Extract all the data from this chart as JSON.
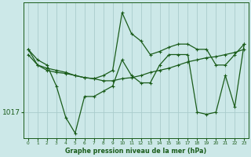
{
  "bg_color": "#cce8e8",
  "line_color": "#1a5c1a",
  "grid_color": "#aacccc",
  "xlabel_text": "Graphe pression niveau de la mer (hPa)",
  "x_ticks": [
    0,
    1,
    2,
    3,
    4,
    5,
    6,
    7,
    8,
    9,
    10,
    11,
    12,
    13,
    14,
    15,
    16,
    17,
    18,
    19,
    20,
    21,
    22,
    23
  ],
  "ylim": [
    1014.5,
    1027.5
  ],
  "xlim": [
    -0.5,
    23.5
  ],
  "ylabel_value": 1017,
  "series1_x": [
    0,
    1,
    2,
    3,
    4,
    5,
    6,
    7,
    8,
    9,
    10,
    11,
    12,
    13,
    14,
    15,
    16,
    17,
    18,
    19,
    20,
    21,
    22,
    23
  ],
  "series1_y": [
    1022.5,
    1021.5,
    1021.2,
    1021.0,
    1020.8,
    1020.5,
    1020.3,
    1020.2,
    1020.0,
    1020.0,
    1020.2,
    1020.3,
    1020.5,
    1020.8,
    1021.0,
    1021.2,
    1021.5,
    1021.8,
    1022.0,
    1022.2,
    1022.3,
    1022.5,
    1022.7,
    1023.0
  ],
  "series2_x": [
    0,
    1,
    2,
    3,
    4,
    5,
    6,
    7,
    8,
    9,
    10,
    11,
    12,
    13,
    14,
    15,
    16,
    17,
    18,
    19,
    20,
    21,
    22,
    23
  ],
  "series2_y": [
    1023.0,
    1021.5,
    1021.0,
    1020.8,
    1020.7,
    1020.5,
    1020.3,
    1020.2,
    1020.5,
    1021.0,
    1026.5,
    1024.5,
    1023.8,
    1022.5,
    1022.8,
    1023.2,
    1023.5,
    1023.5,
    1023.0,
    1023.0,
    1021.5,
    1021.5,
    1022.5,
    1023.5
  ],
  "series3_x": [
    0,
    1,
    2,
    3,
    4,
    5,
    6,
    7,
    8,
    9,
    10,
    11,
    12,
    13,
    14,
    15,
    16,
    17,
    18,
    19,
    20,
    21,
    22,
    23
  ],
  "series3_y": [
    1023.0,
    1022.0,
    1021.5,
    1019.5,
    1016.5,
    1015.0,
    1018.5,
    1018.5,
    1019.0,
    1019.5,
    1022.0,
    1020.5,
    1019.8,
    1019.8,
    1021.5,
    1022.5,
    1022.5,
    1022.5,
    1017.0,
    1016.8,
    1017.0,
    1020.5,
    1017.5,
    1023.5
  ]
}
